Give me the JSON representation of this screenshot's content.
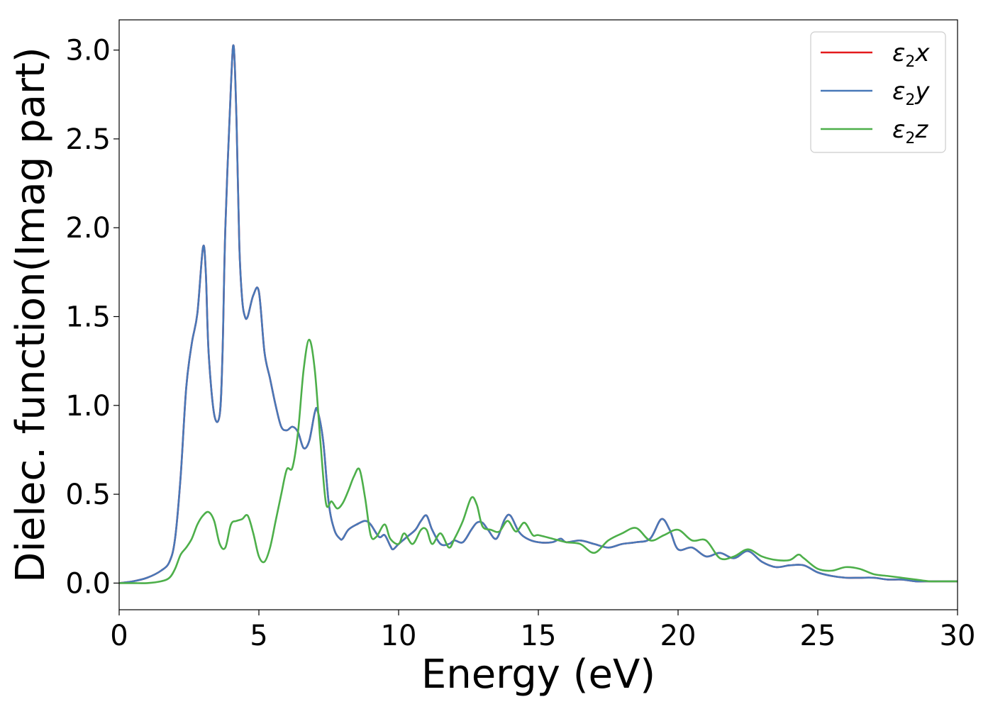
{
  "chart_data": {
    "type": "line",
    "title": "",
    "xlabel": "Energy (eV)",
    "ylabel": "Dielec. function(Imag part)",
    "xlim": [
      0,
      30
    ],
    "ylim": [
      -0.15,
      3.17
    ],
    "xticks": [
      0,
      5,
      10,
      15,
      20,
      25,
      30
    ],
    "xtick_labels": [
      "0",
      "5",
      "10",
      "15",
      "20",
      "25",
      "30"
    ],
    "yticks": [
      0.0,
      0.5,
      1.0,
      1.5,
      2.0,
      2.5,
      3.0
    ],
    "ytick_labels": [
      "0.0",
      "0.5",
      "1.0",
      "1.5",
      "2.0",
      "2.5",
      "3.0"
    ],
    "grid": false,
    "legend_position": "top-right",
    "series": [
      {
        "name": "ε2x",
        "color": "#e41a1c",
        "x": [
          0,
          0.5,
          1.0,
          1.5,
          1.8,
          2.0,
          2.2,
          2.4,
          2.6,
          2.8,
          3.0,
          3.1,
          3.2,
          3.4,
          3.6,
          3.7,
          3.8,
          4.0,
          4.1,
          4.2,
          4.3,
          4.4,
          4.5,
          4.6,
          4.8,
          5.0,
          5.2,
          5.4,
          5.6,
          5.8,
          6.0,
          6.2,
          6.4,
          6.6,
          6.8,
          7.0,
          7.1,
          7.3,
          7.5,
          7.7,
          7.9,
          8.0,
          8.2,
          8.5,
          8.8,
          9.0,
          9.3,
          9.5,
          9.7,
          9.8,
          10.0,
          10.3,
          10.6,
          10.8,
          11.0,
          11.2,
          11.5,
          11.8,
          12.0,
          12.3,
          12.6,
          12.8,
          13.0,
          13.2,
          13.5,
          13.8,
          14.0,
          14.3,
          14.6,
          15.0,
          15.5,
          15.8,
          16.0,
          16.5,
          17.0,
          17.5,
          18.0,
          18.5,
          19.0,
          19.4,
          19.7,
          20.0,
          20.5,
          21.0,
          21.5,
          22.0,
          22.5,
          23.0,
          23.5,
          24.0,
          24.5,
          25.0,
          25.5,
          26.0,
          26.5,
          27.0,
          27.5,
          28.0,
          28.5,
          29.0,
          29.5,
          30.0
        ],
        "y": [
          0.0,
          0.01,
          0.03,
          0.07,
          0.12,
          0.25,
          0.6,
          1.1,
          1.35,
          1.52,
          1.89,
          1.75,
          1.3,
          0.95,
          0.95,
          1.3,
          2.0,
          2.8,
          3.02,
          2.6,
          1.9,
          1.6,
          1.5,
          1.5,
          1.62,
          1.64,
          1.3,
          1.15,
          1.0,
          0.88,
          0.86,
          0.88,
          0.85,
          0.76,
          0.8,
          0.96,
          0.97,
          0.8,
          0.45,
          0.3,
          0.25,
          0.25,
          0.3,
          0.33,
          0.35,
          0.33,
          0.26,
          0.27,
          0.21,
          0.19,
          0.22,
          0.26,
          0.3,
          0.35,
          0.38,
          0.3,
          0.22,
          0.22,
          0.24,
          0.23,
          0.3,
          0.34,
          0.34,
          0.3,
          0.25,
          0.36,
          0.38,
          0.29,
          0.25,
          0.23,
          0.23,
          0.25,
          0.23,
          0.24,
          0.22,
          0.2,
          0.22,
          0.23,
          0.25,
          0.36,
          0.3,
          0.19,
          0.2,
          0.15,
          0.17,
          0.14,
          0.18,
          0.12,
          0.09,
          0.1,
          0.1,
          0.06,
          0.04,
          0.03,
          0.03,
          0.03,
          0.02,
          0.02,
          0.01,
          0.01,
          0.01,
          0.01
        ]
      },
      {
        "name": "ε2y",
        "color": "#4878b8",
        "x": [
          0,
          0.5,
          1.0,
          1.5,
          1.8,
          2.0,
          2.2,
          2.4,
          2.6,
          2.8,
          3.0,
          3.1,
          3.2,
          3.4,
          3.6,
          3.7,
          3.8,
          4.0,
          4.1,
          4.2,
          4.3,
          4.4,
          4.5,
          4.6,
          4.8,
          5.0,
          5.2,
          5.4,
          5.6,
          5.8,
          6.0,
          6.2,
          6.4,
          6.6,
          6.8,
          7.0,
          7.1,
          7.3,
          7.5,
          7.7,
          7.9,
          8.0,
          8.2,
          8.5,
          8.8,
          9.0,
          9.3,
          9.5,
          9.7,
          9.8,
          10.0,
          10.3,
          10.6,
          10.8,
          11.0,
          11.2,
          11.5,
          11.8,
          12.0,
          12.3,
          12.6,
          12.8,
          13.0,
          13.2,
          13.5,
          13.8,
          14.0,
          14.3,
          14.6,
          15.0,
          15.5,
          15.8,
          16.0,
          16.5,
          17.0,
          17.5,
          18.0,
          18.5,
          19.0,
          19.4,
          19.7,
          20.0,
          20.5,
          21.0,
          21.5,
          22.0,
          22.5,
          23.0,
          23.5,
          24.0,
          24.5,
          25.0,
          25.5,
          26.0,
          26.5,
          27.0,
          27.5,
          28.0,
          28.5,
          29.0,
          29.5,
          30.0
        ],
        "y": [
          0.0,
          0.01,
          0.03,
          0.07,
          0.12,
          0.25,
          0.6,
          1.1,
          1.35,
          1.52,
          1.89,
          1.75,
          1.3,
          0.95,
          0.95,
          1.3,
          2.0,
          2.8,
          3.02,
          2.6,
          1.9,
          1.6,
          1.5,
          1.5,
          1.62,
          1.64,
          1.3,
          1.15,
          1.0,
          0.88,
          0.86,
          0.88,
          0.85,
          0.76,
          0.8,
          0.96,
          0.97,
          0.8,
          0.45,
          0.3,
          0.25,
          0.25,
          0.3,
          0.33,
          0.35,
          0.33,
          0.26,
          0.27,
          0.21,
          0.19,
          0.22,
          0.26,
          0.3,
          0.35,
          0.38,
          0.3,
          0.22,
          0.22,
          0.24,
          0.23,
          0.3,
          0.34,
          0.34,
          0.3,
          0.25,
          0.36,
          0.38,
          0.29,
          0.25,
          0.23,
          0.23,
          0.25,
          0.23,
          0.24,
          0.22,
          0.2,
          0.22,
          0.23,
          0.25,
          0.36,
          0.3,
          0.19,
          0.2,
          0.15,
          0.17,
          0.14,
          0.18,
          0.12,
          0.09,
          0.1,
          0.1,
          0.06,
          0.04,
          0.03,
          0.03,
          0.03,
          0.02,
          0.02,
          0.01,
          0.01,
          0.01,
          0.01
        ]
      },
      {
        "name": "ε2z",
        "color": "#4daf4a",
        "x": [
          0,
          0.5,
          1.0,
          1.5,
          1.8,
          2.0,
          2.2,
          2.4,
          2.6,
          2.8,
          3.0,
          3.2,
          3.4,
          3.6,
          3.8,
          4.0,
          4.2,
          4.4,
          4.6,
          4.8,
          5.0,
          5.2,
          5.4,
          5.6,
          5.8,
          6.0,
          6.2,
          6.4,
          6.6,
          6.8,
          7.0,
          7.2,
          7.4,
          7.6,
          7.8,
          8.0,
          8.2,
          8.4,
          8.6,
          8.8,
          9.0,
          9.2,
          9.5,
          9.7,
          10.0,
          10.2,
          10.5,
          10.8,
          11.0,
          11.2,
          11.5,
          11.8,
          12.0,
          12.3,
          12.6,
          12.8,
          13.0,
          13.3,
          13.6,
          13.9,
          14.2,
          14.5,
          14.8,
          15.0,
          15.5,
          16.0,
          16.5,
          17.0,
          17.5,
          18.0,
          18.5,
          19.0,
          19.5,
          20.0,
          20.5,
          21.0,
          21.5,
          22.0,
          22.5,
          23.0,
          23.5,
          24.0,
          24.3,
          24.5,
          25.0,
          25.5,
          26.0,
          26.5,
          27.0,
          27.5,
          28.0,
          28.5,
          29.0,
          29.5,
          30.0
        ],
        "y": [
          0.0,
          0.0,
          0.0,
          0.01,
          0.03,
          0.08,
          0.16,
          0.2,
          0.25,
          0.33,
          0.38,
          0.4,
          0.35,
          0.22,
          0.2,
          0.33,
          0.35,
          0.36,
          0.38,
          0.28,
          0.15,
          0.12,
          0.2,
          0.35,
          0.5,
          0.64,
          0.65,
          0.85,
          1.2,
          1.37,
          1.2,
          0.8,
          0.45,
          0.46,
          0.42,
          0.45,
          0.52,
          0.6,
          0.64,
          0.48,
          0.27,
          0.26,
          0.33,
          0.25,
          0.22,
          0.28,
          0.22,
          0.3,
          0.3,
          0.22,
          0.28,
          0.2,
          0.25,
          0.35,
          0.48,
          0.44,
          0.32,
          0.3,
          0.29,
          0.35,
          0.29,
          0.34,
          0.27,
          0.27,
          0.25,
          0.23,
          0.22,
          0.17,
          0.24,
          0.28,
          0.31,
          0.24,
          0.27,
          0.3,
          0.24,
          0.24,
          0.14,
          0.15,
          0.19,
          0.15,
          0.13,
          0.13,
          0.16,
          0.14,
          0.08,
          0.07,
          0.09,
          0.08,
          0.05,
          0.04,
          0.03,
          0.02,
          0.01,
          0.01,
          0.01
        ]
      }
    ]
  }
}
